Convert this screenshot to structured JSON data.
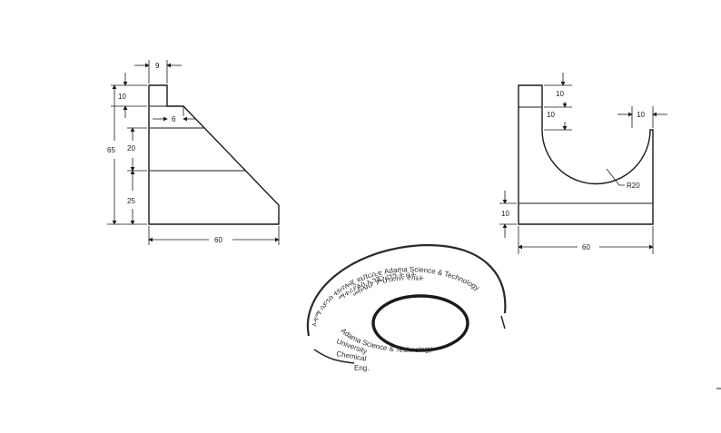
{
  "drawing": {
    "left_view": {
      "dimensions": {
        "top_width": "9",
        "top_height": "10",
        "step": "6",
        "overall_height": "65",
        "mid_height": "20",
        "base_height": "25",
        "base_width": "60"
      }
    },
    "right_view": {
      "dimensions": {
        "upper_step": "10",
        "lower_step": "10",
        "right_land": "10",
        "radius": "R20",
        "base_height": "10",
        "base_width": "60"
      }
    }
  },
  "stamp": {
    "outer_line_1": "ኦዳማ ሳይንስ ቴክኖሎጂ ዩኒቨርሲቲ Adama Science & Technology",
    "outer_line_2": "ማቴሪያልስ ኢንጂነሪንግ ት ቤት",
    "outer_line_3": "መከላከያ ምህንድስና ት/ቤት",
    "inner_line_1": "Adama Science & Technology",
    "inner_line_2": "University",
    "inner_line_3": "Chemical",
    "inner_line_4": "Eng."
  }
}
